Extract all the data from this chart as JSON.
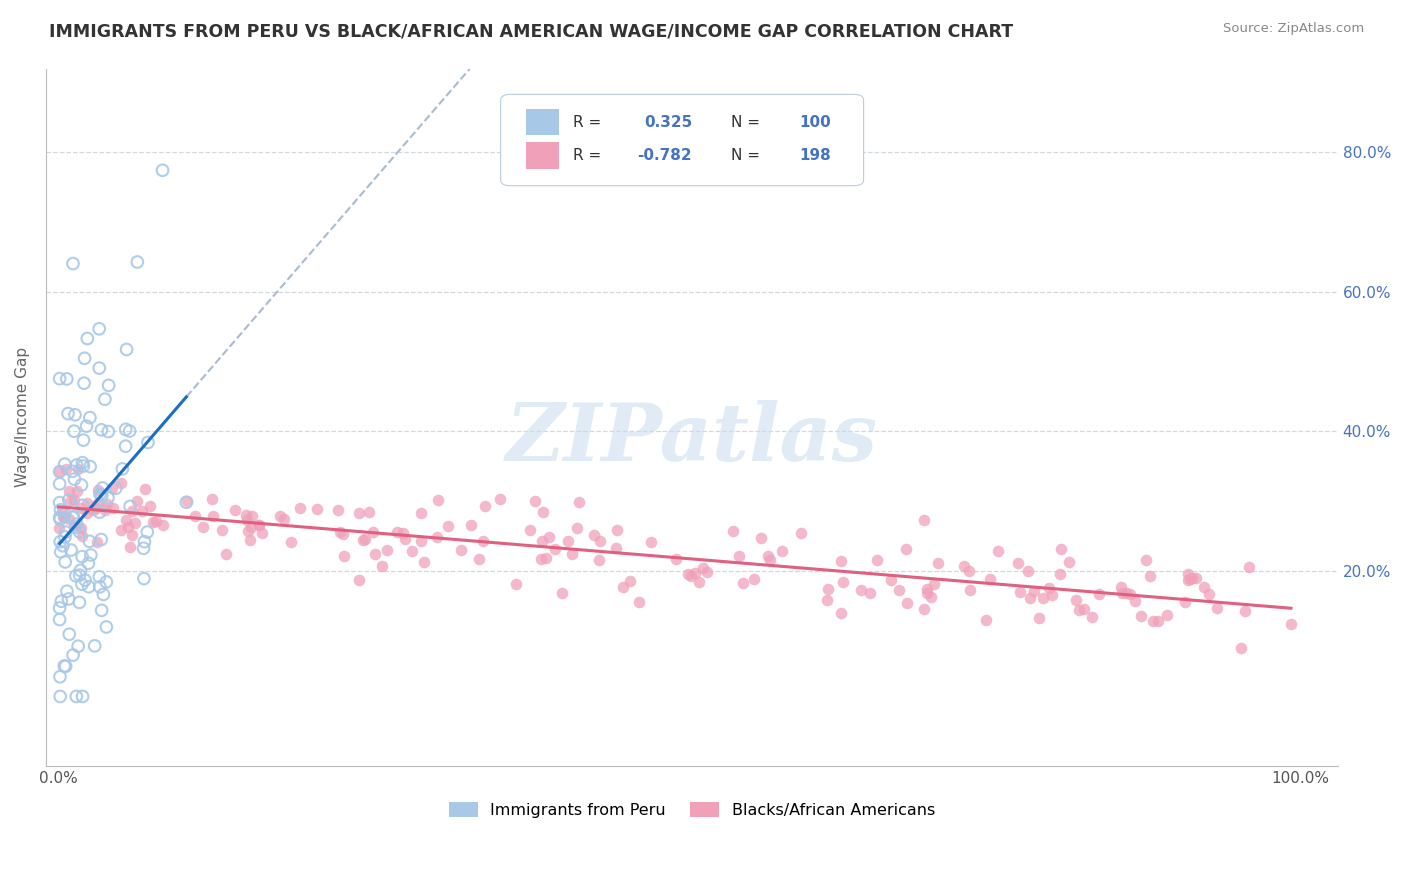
{
  "title": "IMMIGRANTS FROM PERU VS BLACK/AFRICAN AMERICAN WAGE/INCOME GAP CORRELATION CHART",
  "source": "Source: ZipAtlas.com",
  "ylabel": "Wage/Income Gap",
  "watermark": "ZIPatlas",
  "legend_blue_r": "0.325",
  "legend_blue_n": "100",
  "legend_pink_r": "-0.782",
  "legend_pink_n": "198",
  "blue_scatter_color": "#A8C8E8",
  "pink_scatter_color": "#F0A0B8",
  "blue_line_color": "#1B6EC2",
  "blue_dash_color": "#AABBD0",
  "pink_line_color": "#E06080",
  "legend_box_blue": "#A8C8E8",
  "legend_box_pink": "#F0A0B8",
  "text_blue_color": "#4472C4",
  "text_dark": "#333333",
  "grid_color": "#D0D8E0",
  "right_tick_color": "#4472C4",
  "yticks": [
    0.2,
    0.4,
    0.6,
    0.8
  ],
  "ytick_labels": [
    "20.0%",
    "40.0%",
    "60.0%",
    "80.0%"
  ],
  "xticks": [
    0.0,
    0.2,
    0.4,
    0.6,
    0.8,
    1.0
  ],
  "xtick_labels": [
    "0.0%",
    "",
    "",
    "",
    "",
    "100.0%"
  ],
  "ylim": [
    -0.08,
    0.92
  ],
  "xlim": [
    -0.01,
    1.03
  ]
}
